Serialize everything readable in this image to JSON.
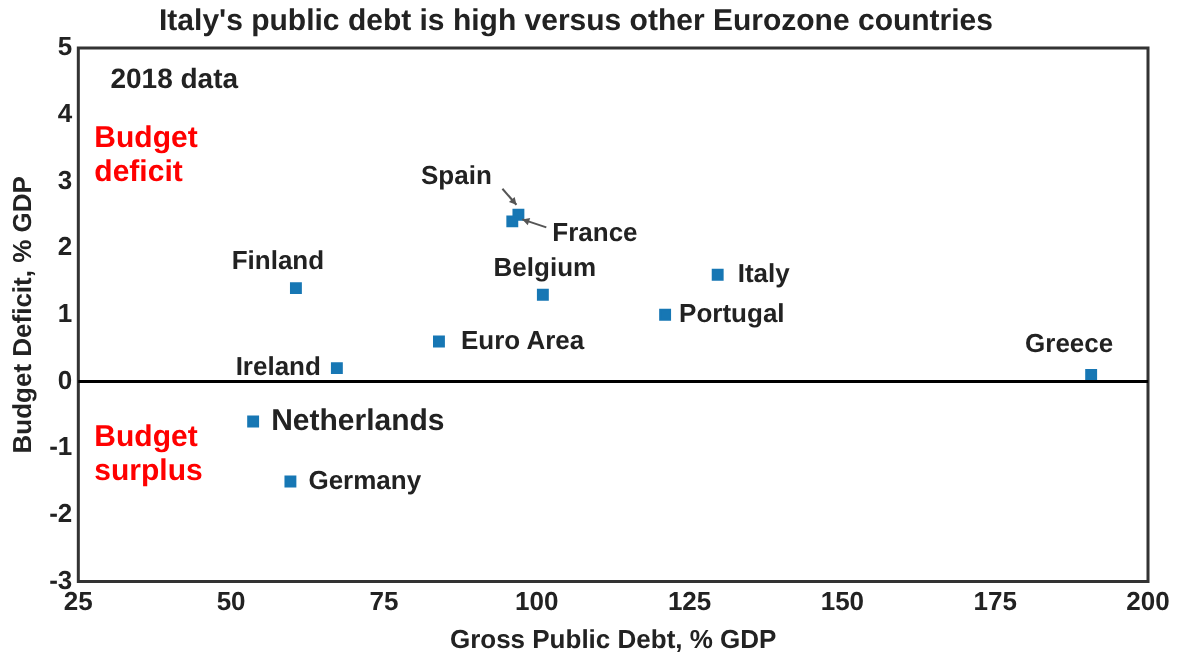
{
  "chart_data": {
    "type": "scatter",
    "title": "Italy's public debt is high versus other Eurozone countries",
    "xlabel": "Gross Public Debt, % GDP",
    "ylabel": "Budget Deficit, % GDP",
    "series": [
      {
        "color": "#1777b4",
        "x": [
          97,
          96,
          60.6,
          101,
          84,
          67.3,
          53.6,
          59.7,
          129.6,
          121,
          190.7
        ],
        "values": [
          2.5,
          2.4,
          1.4,
          1.3,
          0.6,
          0.2,
          -0.6,
          -1.5,
          1.6,
          1.0,
          0.1
        ]
      }
    ],
    "xlim": [
      25,
      200
    ],
    "xticks": [
      25,
      50,
      75,
      100,
      125,
      150,
      175,
      200
    ],
    "ylim": [
      -3,
      5
    ],
    "yticks": [
      -3,
      -2,
      -1,
      0,
      1,
      2,
      3,
      4,
      5
    ],
    "ref_lines": [
      {
        "axis": "y",
        "value": 0,
        "color": "#000000"
      }
    ],
    "marker": "square",
    "grid": false,
    "legend": false,
    "annotations": [
      "2018 data",
      "Budget deficit",
      "Budget surplus",
      {
        "text": "Spain",
        "x": 97,
        "y": 2.5
      },
      {
        "text": "France",
        "x": 96,
        "y": 2.4
      },
      {
        "text": "Finland",
        "x": 60.6,
        "y": 1.4
      },
      {
        "text": "Belgium",
        "x": 101,
        "y": 1.3
      },
      {
        "text": "Euro Area",
        "x": 84,
        "y": 0.6
      },
      {
        "text": "Ireland",
        "x": 67.3,
        "y": 0.2
      },
      {
        "text": "Netherlands",
        "x": 53.6,
        "y": -0.6
      },
      {
        "text": "Germany",
        "x": 59.7,
        "y": -1.5
      },
      {
        "text": "Italy",
        "x": 129.6,
        "y": 1.6
      },
      {
        "text": "Portugal",
        "x": 121,
        "y": 1.0
      },
      {
        "text": "Greece",
        "x": 190.7,
        "y": 0.1
      }
    ]
  }
}
